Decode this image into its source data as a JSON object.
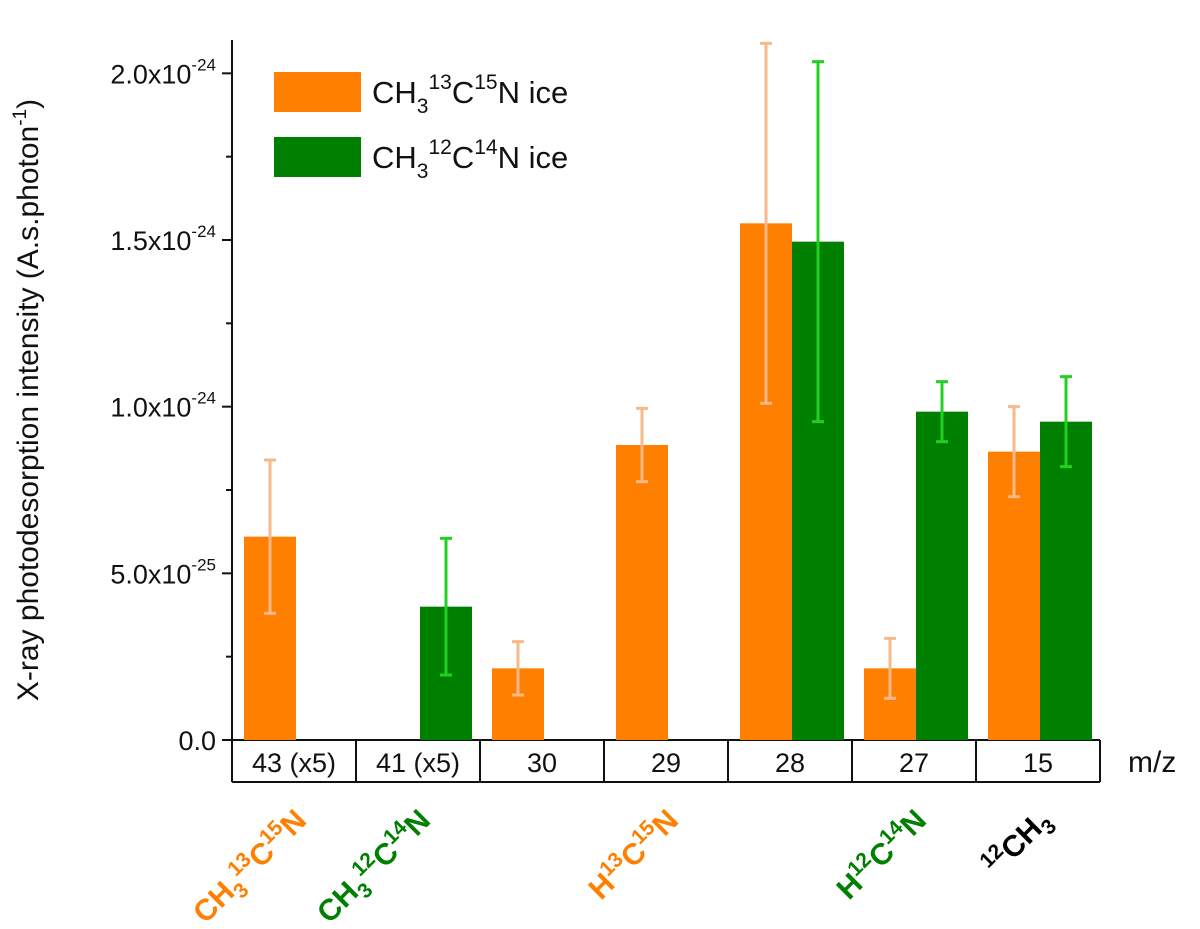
{
  "chart_data": {
    "type": "bar",
    "ylabel": "X-ray photodesorption intensity (A.s.photon",
    "ylabel_sup": "-1",
    "ylabel_close": ")",
    "xlabel": "m/z",
    "ylim": [
      0,
      2.1e-24
    ],
    "yticks": [
      {
        "value": 0,
        "base": "0.0",
        "exp": ""
      },
      {
        "value": 5e-25,
        "base": "5.0x10",
        "exp": "-25"
      },
      {
        "value": 1e-24,
        "base": "1.0x10",
        "exp": "-24"
      },
      {
        "value": 1.5e-24,
        "base": "1.5x10",
        "exp": "-24"
      },
      {
        "value": 2e-24,
        "base": "2.0x10",
        "exp": "-24"
      }
    ],
    "categories": [
      "43 (x5)",
      "41 (x5)",
      "30",
      "29",
      "28",
      "27",
      "15"
    ],
    "series": [
      {
        "name_parts": [
          "CH",
          "3",
          "13",
          "C",
          "15",
          "N ice"
        ],
        "color": "#ff8000",
        "err_color": "#f5b98a",
        "values": [
          6.1e-25,
          null,
          2.15e-25,
          8.85e-25,
          1.55e-24,
          2.15e-25,
          8.65e-25
        ],
        "errors": [
          2.3e-25,
          null,
          8e-26,
          1.1e-25,
          5.4e-25,
          9e-26,
          1.35e-25
        ]
      },
      {
        "name_parts": [
          "CH",
          "3",
          "12",
          "C",
          "14",
          "N ice"
        ],
        "color": "#008000",
        "err_color": "#22d022",
        "values": [
          null,
          4e-25,
          null,
          null,
          1.495e-24,
          9.85e-25,
          9.55e-25
        ],
        "errors": [
          null,
          2.05e-25,
          null,
          null,
          5.4e-25,
          9e-26,
          1.35e-25
        ]
      }
    ],
    "species_labels": [
      {
        "category_index": 0,
        "parts": [
          "CH",
          "3",
          "13",
          "C",
          "15",
          "N"
        ],
        "color": "#ff8000"
      },
      {
        "category_index": 1,
        "parts": [
          "CH",
          "3",
          "12",
          "C",
          "14",
          "N"
        ],
        "color": "#008000"
      },
      {
        "category_index": 3,
        "parts": [
          "H",
          "",
          "13",
          "C",
          "15",
          "N"
        ],
        "color": "#ff8000"
      },
      {
        "category_index": 5,
        "parts": [
          "H",
          "",
          "12",
          "C",
          "14",
          "N"
        ],
        "color": "#008000"
      },
      {
        "category_index": 6,
        "parts": [
          "",
          "",
          "12",
          "CH",
          "",
          "",
          "3"
        ],
        "color": "#000000"
      }
    ]
  }
}
